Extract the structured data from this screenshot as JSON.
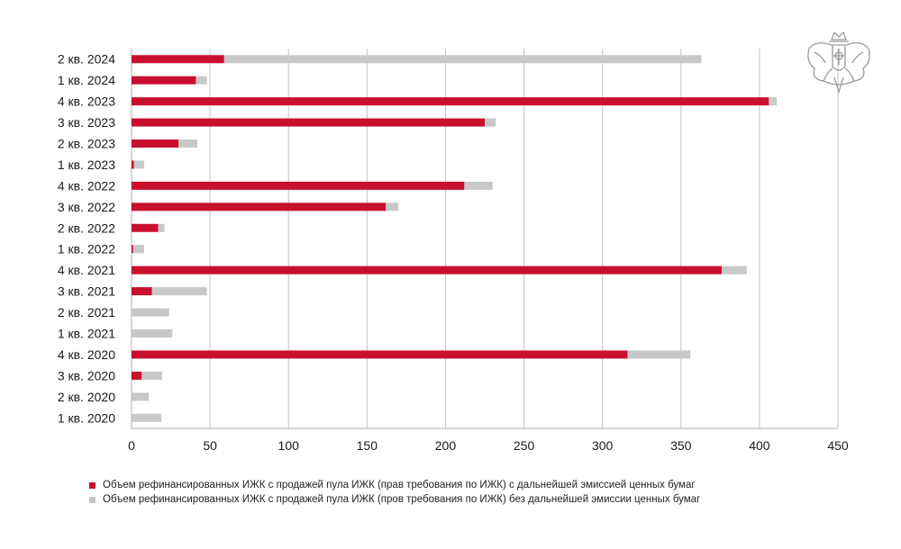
{
  "chart_data": {
    "type": "bar",
    "orientation": "horizontal",
    "stacked": true,
    "categories": [
      "2 кв. 2024",
      "1 кв. 2024",
      "4 кв. 2023",
      "3 кв. 2023",
      "2 кв. 2023",
      "1 кв. 2023",
      "4 кв. 2022",
      "3 кв. 2022",
      "2 кв. 2022",
      "1 кв. 2022",
      "4 кв. 2021",
      "3 кв. 2021",
      "2 кв. 2021",
      "1 кв. 2021",
      "4 кв. 2020",
      "3 кв. 2020",
      "2 кв. 2020",
      "1 кв. 2020"
    ],
    "series": [
      {
        "name": "Объем рефинансированных ИЖК с продажей пула ИЖК (прав требования по ИЖК) с дальнейшей эмиссией ценных бумаг",
        "color": "#c8102e",
        "values": [
          59,
          41,
          406,
          225,
          30,
          1.5,
          212,
          162,
          17,
          1,
          376,
          13,
          0,
          0,
          316,
          6.5,
          0,
          0
        ]
      },
      {
        "name": "Объем рефинансированных ИЖК с продажей пула ИЖК (пров требования по ИЖК) без дальнейшей эмиссии ценных бумаг",
        "color": "#c8c8c8",
        "values": [
          304,
          7,
          5,
          7,
          12,
          6.5,
          18,
          8,
          4,
          7,
          16,
          35,
          24,
          26,
          40,
          13,
          11,
          19
        ]
      }
    ],
    "xlim": [
      0,
      450
    ],
    "xticks": [
      "0",
      "50",
      "100",
      "150",
      "200",
      "250",
      "300",
      "350",
      "400",
      "450"
    ],
    "grid": true,
    "legend_position": "bottom"
  }
}
